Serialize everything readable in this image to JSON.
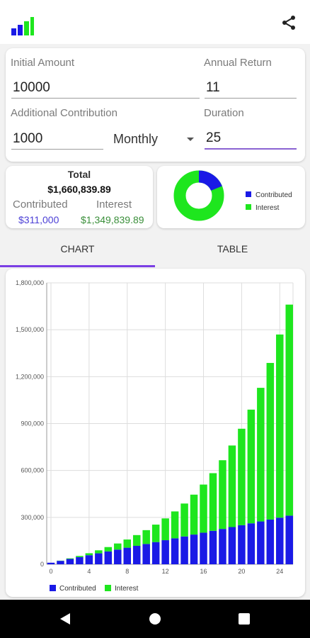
{
  "inputs": {
    "initial_amount": {
      "label": "Initial Amount",
      "value": "10000"
    },
    "annual_return": {
      "label": "Annual Return",
      "value": "11"
    },
    "additional_contribution": {
      "label": "Additional Contribution",
      "value": "1000"
    },
    "frequency": {
      "value": "Monthly"
    },
    "duration": {
      "label": "Duration",
      "value": "25"
    }
  },
  "summary": {
    "title": "Total",
    "total": "$1,660,839.89",
    "contributed_label": "Contributed",
    "contributed_value": "$311,000",
    "interest_label": "Interest",
    "interest_value": "$1,349,839.89"
  },
  "donut": {
    "legend": [
      {
        "name": "Contributed",
        "color": "#1a1ae6"
      },
      {
        "name": "Interest",
        "color": "#1ee61e"
      }
    ],
    "contributed_fraction": 0.1873
  },
  "tabs": [
    {
      "label": "CHART",
      "active": true
    },
    {
      "label": "TABLE",
      "active": false
    }
  ],
  "colors": {
    "contributed": "#1a1ae6",
    "interest": "#1ee61e",
    "accent": "#7b3fe4",
    "contributed_text": "#4b3fd6",
    "interest_text": "#3a8f3a"
  },
  "chart_data": {
    "type": "bar",
    "stacked": true,
    "x": [
      0,
      1,
      2,
      3,
      4,
      5,
      6,
      7,
      8,
      9,
      10,
      11,
      12,
      13,
      14,
      15,
      16,
      17,
      18,
      19,
      20,
      21,
      22,
      23,
      24,
      25
    ],
    "xticks": [
      "0",
      "4",
      "8",
      "12",
      "16",
      "20",
      "24"
    ],
    "yticks": [
      "0",
      "300,000",
      "600,000",
      "900,000",
      "1,200,000",
      "1,500,000",
      "1,800,000"
    ],
    "ylim": [
      0,
      1800000
    ],
    "grid": true,
    "legend_position": "bottom",
    "series": [
      {
        "name": "Contributed",
        "values": [
          10000,
          22000,
          34000,
          46000,
          58000,
          70000,
          82000,
          94000,
          106000,
          118000,
          130000,
          142000,
          154000,
          166000,
          178000,
          190000,
          202000,
          214000,
          226000,
          238000,
          250000,
          262000,
          274000,
          286000,
          298000,
          311000
        ]
      },
      {
        "name": "Interest",
        "values": [
          0,
          1300,
          3700,
          7400,
          12600,
          19400,
          28100,
          39000,
          52400,
          68700,
          88300,
          111700,
          139400,
          172100,
          210500,
          255400,
          307800,
          368700,
          439500,
          521700,
          616900,
          727100,
          854600,
          1001800,
          1171600,
          1349840
        ]
      }
    ]
  }
}
